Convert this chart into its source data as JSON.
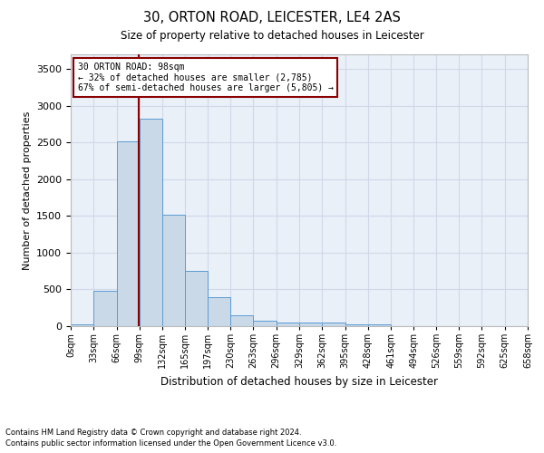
{
  "title": "30, ORTON ROAD, LEICESTER, LE4 2AS",
  "subtitle": "Size of property relative to detached houses in Leicester",
  "xlabel": "Distribution of detached houses by size in Leicester",
  "ylabel": "Number of detached properties",
  "footnote1": "Contains HM Land Registry data © Crown copyright and database right 2024.",
  "footnote2": "Contains public sector information licensed under the Open Government Licence v3.0.",
  "bar_color": "#c9d9e8",
  "bar_edge_color": "#5b9bd5",
  "grid_color": "#d0d8e8",
  "background_color": "#eaf0f8",
  "vline_color": "#8b0000",
  "annotation_text": "30 ORTON ROAD: 98sqm\n← 32% of detached houses are smaller (2,785)\n67% of semi-detached houses are larger (5,805) →",
  "annotation_box_color": "#8b0000",
  "property_size_sqm": 98,
  "bin_edges": [
    0,
    33,
    66,
    99,
    132,
    165,
    197,
    230,
    263,
    296,
    329,
    362,
    395,
    428,
    461,
    494,
    526,
    559,
    592,
    625,
    658
  ],
  "bin_labels": [
    "0sqm",
    "33sqm",
    "66sqm",
    "99sqm",
    "132sqm",
    "165sqm",
    "197sqm",
    "230sqm",
    "263sqm",
    "296sqm",
    "329sqm",
    "362sqm",
    "395sqm",
    "428sqm",
    "461sqm",
    "494sqm",
    "526sqm",
    "559sqm",
    "592sqm",
    "625sqm",
    "658sqm"
  ],
  "counts": [
    20,
    480,
    2510,
    2820,
    1520,
    750,
    390,
    145,
    70,
    55,
    50,
    55,
    25,
    20,
    0,
    0,
    0,
    0,
    0,
    0
  ],
  "ylim": [
    0,
    3700
  ],
  "yticks": [
    0,
    500,
    1000,
    1500,
    2000,
    2500,
    3000,
    3500
  ]
}
